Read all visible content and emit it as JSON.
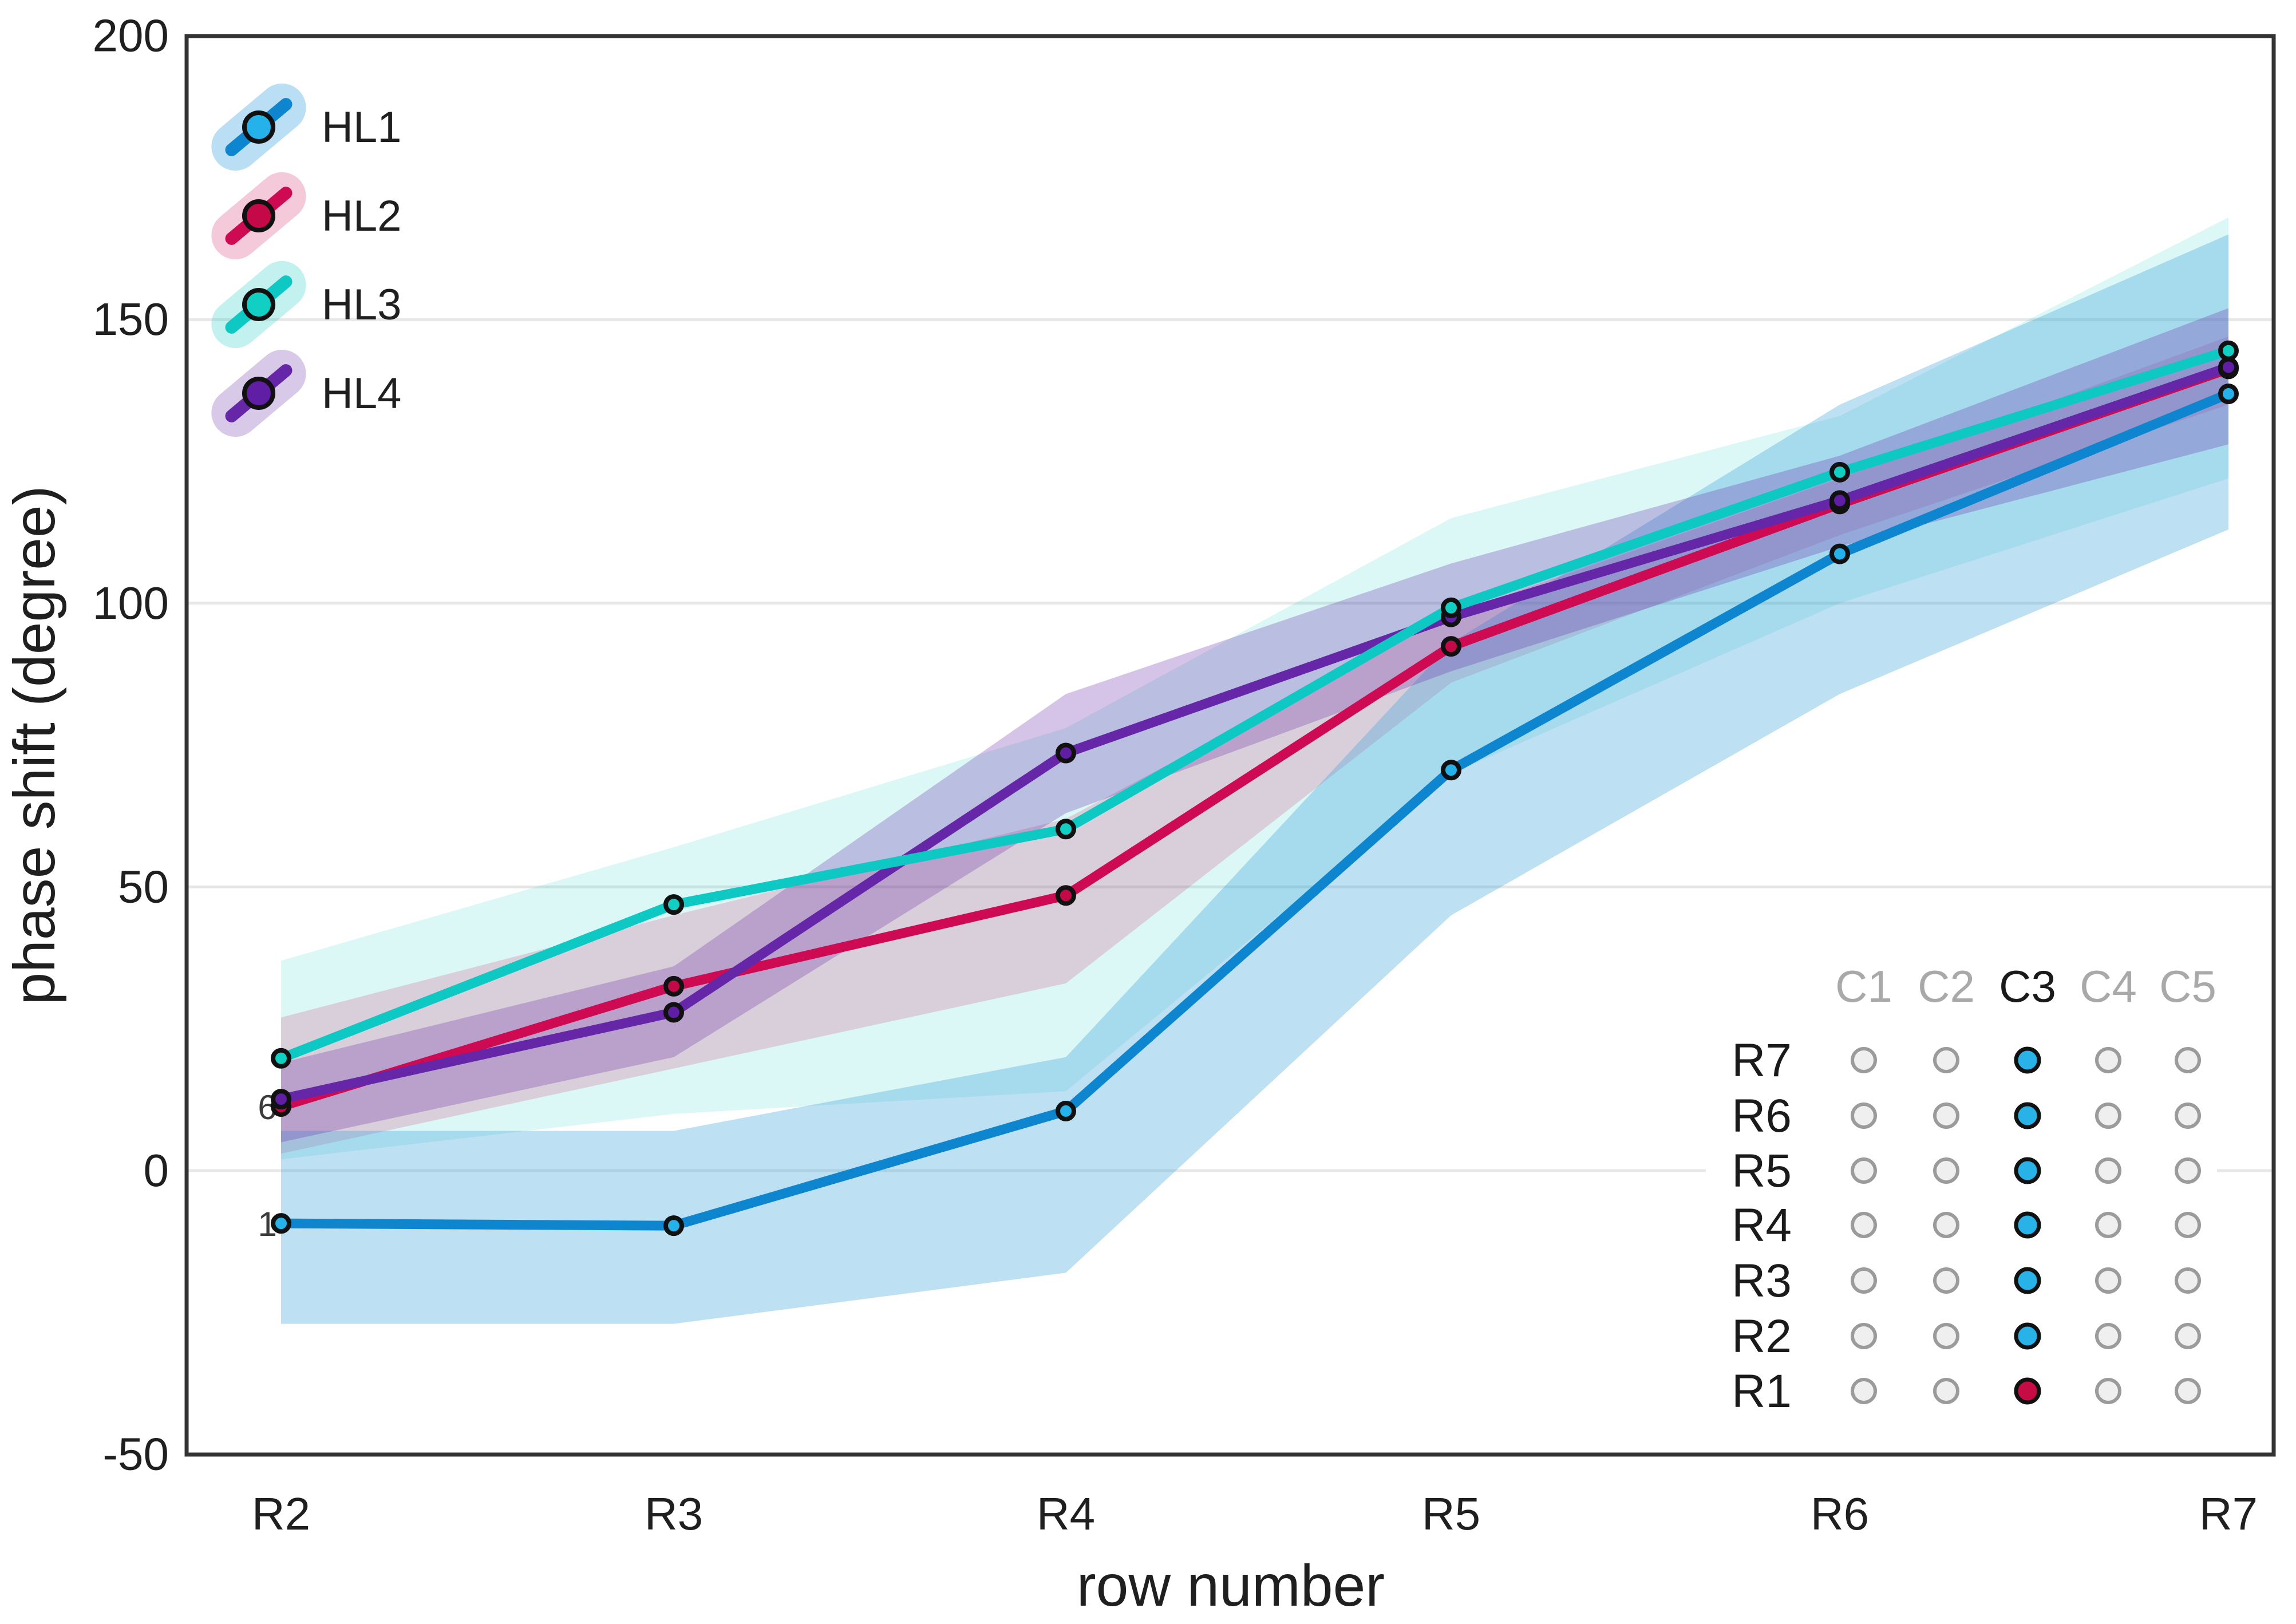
{
  "chart_data": {
    "type": "line",
    "title": "",
    "xlabel": "row number",
    "ylabel": "phase shift (degree)",
    "categories": [
      "R2",
      "R3",
      "R4",
      "R5",
      "R6",
      "R7"
    ],
    "ylim": [
      -50,
      200
    ],
    "yticks": [
      200,
      150,
      100,
      50,
      0,
      -50
    ],
    "gridline_values": [
      150,
      100,
      50,
      0
    ],
    "legend_position": "top-left-inside",
    "grid": "horizontal-only",
    "series": [
      {
        "name": "HL1",
        "values": [
          -9.3,
          -9.7,
          10.5,
          70.6,
          108.7,
          136.9
        ],
        "band_lower": [
          -27,
          -27,
          -18,
          45,
          84,
          113
        ],
        "band_upper": [
          7,
          7,
          20,
          93,
          135,
          165
        ],
        "line_color": "#0e86cf",
        "marker_color": "#25b1e9",
        "band_color": "rgba(58,160,220,0.33)",
        "legend_pill_color": "rgba(58,160,220,0.35)"
      },
      {
        "name": "HL2",
        "values": [
          11.3,
          32.5,
          48.5,
          92.4,
          117.5,
          141.3
        ],
        "band_lower": [
          3,
          18,
          33,
          86,
          112,
          135
        ],
        "band_upper": [
          27,
          45,
          62,
          98,
          122,
          147
        ],
        "line_color": "#ce0a52",
        "marker_color": "#c50948",
        "band_color": "rgba(206,10,82,0.17)",
        "legend_pill_color": "rgba(206,10,82,0.22)"
      },
      {
        "name": "HL3",
        "values": [
          19.8,
          46.9,
          60.2,
          99.2,
          123.1,
          144.5
        ],
        "band_lower": [
          2,
          10,
          14,
          70,
          100,
          122
        ],
        "band_upper": [
          37,
          57,
          78,
          115,
          133,
          168
        ],
        "line_color": "#0dc8c3",
        "marker_color": "#12cfc4",
        "band_color": "rgba(13,200,195,0.15)",
        "legend_pill_color": "rgba(13,200,195,0.25)"
      },
      {
        "name": "HL4",
        "values": [
          12.6,
          27.9,
          73.6,
          97.6,
          118.1,
          141.6
        ],
        "band_lower": [
          5,
          20,
          63,
          88,
          110,
          128
        ],
        "band_upper": [
          19,
          36,
          84,
          107,
          126,
          152
        ],
        "line_color": "#6526a8",
        "marker_color": "#5f1ea4",
        "band_color": "rgba(101,38,168,0.27)",
        "legend_pill_color": "rgba(101,38,168,0.25)"
      }
    ],
    "band_draw_order": [
      "HL3",
      "HL2",
      "HL1",
      "HL4"
    ],
    "line_draw_order": [
      "HL2",
      "HL4",
      "HL3",
      "HL1"
    ],
    "marker_draw_order": [
      "HL1",
      "HL2",
      "HL4",
      "HL3"
    ],
    "annotations": [
      {
        "text": "6",
        "series": "HL2",
        "x_index": 0
      },
      {
        "text": "1",
        "series": "HL1",
        "x_index": 0
      }
    ],
    "legend": {
      "items": [
        "HL1",
        "HL2",
        "HL3",
        "HL4"
      ]
    },
    "inset": {
      "columns": [
        "C1",
        "C2",
        "C3",
        "C4",
        "C5"
      ],
      "rows": [
        "R7",
        "R6",
        "R5",
        "R4",
        "R3",
        "R2",
        "R1"
      ],
      "active_column": "C3",
      "active_column_label_color": "#1a1a1a",
      "inactive_column_label_color": "#a9a9a9",
      "row_label_color": "#1a1a1a",
      "default_dot_fill": "#efefef",
      "default_dot_stroke": "#9b9b9b",
      "active_dot_fill_blue": "#29b2e8",
      "active_dot_fill_red": "#c60b45",
      "red_rows": [
        "R1"
      ],
      "dot_outline_active": "#111111"
    },
    "colors": {
      "axis_text": "#1f1f1f",
      "frame": "#333333",
      "gridline": "#e7e7e7",
      "annotation_text": "#3c3c3c",
      "background": "#ffffff"
    }
  }
}
